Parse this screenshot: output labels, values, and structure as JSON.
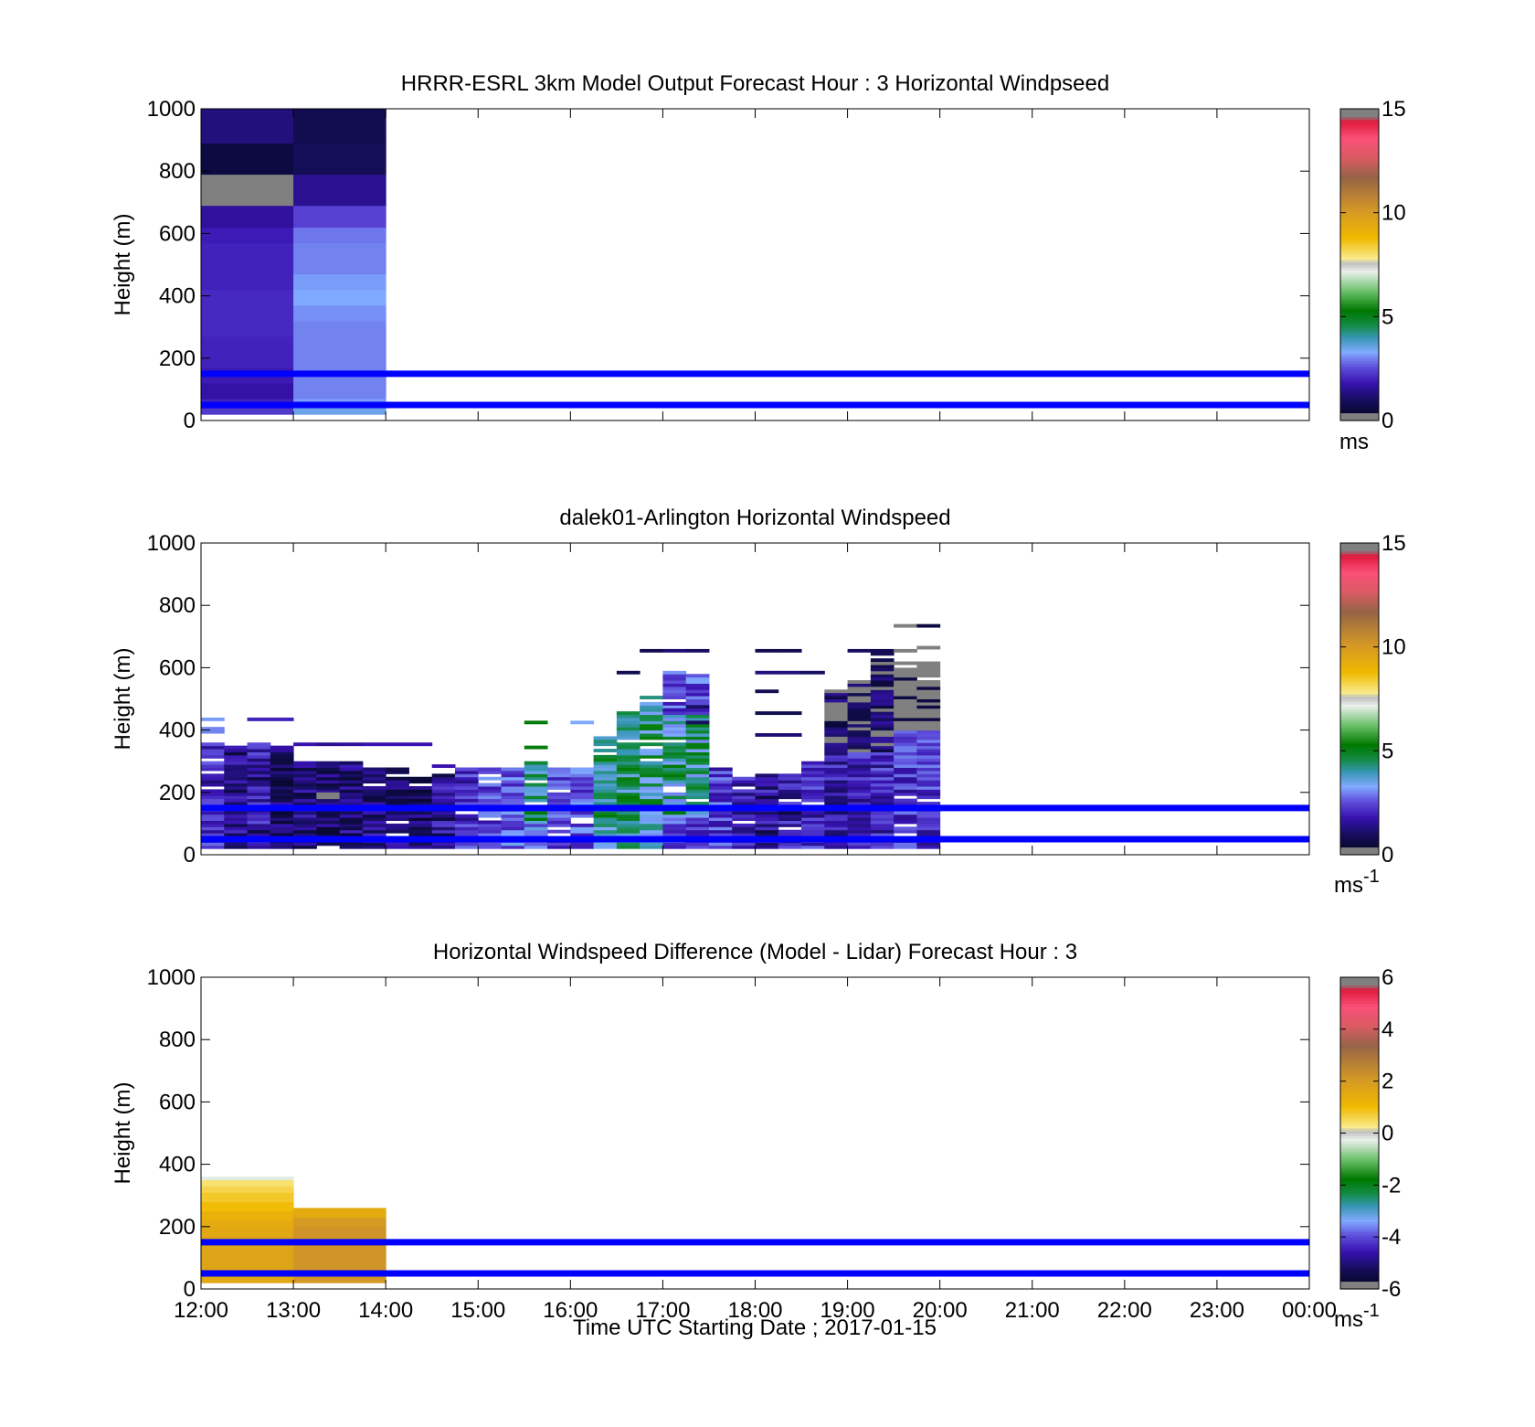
{
  "figure": {
    "xlabel": "Time UTC  Starting Date ; 2017-01-15",
    "x_tick_labels": [
      "12:00",
      "13:00",
      "14:00",
      "15:00",
      "16:00",
      "17:00",
      "18:00",
      "19:00",
      "20:00",
      "21:00",
      "22:00",
      "23:00",
      "00:00"
    ]
  },
  "chart_data": [
    {
      "type": "heatmap",
      "title": "HRRR-ESRL 3km Model Output   Forecast Hour : 3 Horizontal Windpseed",
      "ylabel": "Height (m)",
      "ylim": [
        0,
        1000
      ],
      "y_ticks": [
        0,
        200,
        400,
        600,
        800,
        1000
      ],
      "x_range_hours": [
        12,
        24
      ],
      "colorbar": {
        "min": 0,
        "max": 15,
        "ticks": [
          0,
          5,
          10,
          15
        ],
        "unit": "ms",
        "unit_exp": ""
      },
      "reference_heights_m": [
        150,
        50
      ],
      "reference_line_color": "#0000ff",
      "columns": [
        {
          "t0": 12,
          "t1": 13,
          "cells": [
            [
              20,
              40,
              2.3
            ],
            [
              40,
              70,
              2.0
            ],
            [
              70,
              120,
              1.7
            ],
            [
              120,
              170,
              1.9
            ],
            [
              170,
              220,
              2.0
            ],
            [
              220,
              270,
              2.0
            ],
            [
              270,
              320,
              2.1
            ],
            [
              320,
              370,
              2.1
            ],
            [
              370,
              420,
              2.1
            ],
            [
              420,
              470,
              2.0
            ],
            [
              470,
              520,
              2.0
            ],
            [
              520,
              570,
              2.0
            ],
            [
              570,
              620,
              1.9
            ],
            [
              620,
              690,
              1.6
            ],
            [
              690,
              790,
              14.9
            ],
            [
              790,
              890,
              0.6
            ],
            [
              890,
              1000,
              1.3
            ]
          ]
        },
        {
          "t0": 13,
          "t1": 14,
          "cells": [
            [
              20,
              40,
              3.5
            ],
            [
              40,
              70,
              3.2
            ],
            [
              70,
              120,
              3.0
            ],
            [
              120,
              170,
              3.0
            ],
            [
              170,
              220,
              3.0
            ],
            [
              220,
              270,
              3.0
            ],
            [
              270,
              320,
              3.0
            ],
            [
              320,
              370,
              3.1
            ],
            [
              370,
              420,
              3.3
            ],
            [
              420,
              470,
              3.2
            ],
            [
              470,
              520,
              3.0
            ],
            [
              520,
              570,
              3.0
            ],
            [
              570,
              620,
              2.9
            ],
            [
              620,
              690,
              2.4
            ],
            [
              690,
              790,
              1.5
            ],
            [
              790,
              890,
              0.9
            ],
            [
              890,
              1000,
              0.8
            ]
          ]
        }
      ]
    },
    {
      "type": "heatmap",
      "title": "dalek01-Arlington  Horizontal Windspeed",
      "ylabel": "Height (m)",
      "ylim": [
        0,
        1000
      ],
      "y_ticks": [
        0,
        200,
        400,
        600,
        800,
        1000
      ],
      "x_range_hours": [
        12,
        24
      ],
      "colorbar": {
        "min": 0,
        "max": 15,
        "ticks": [
          0,
          5,
          10,
          15
        ],
        "unit": "ms",
        "unit_exp": "-1"
      },
      "reference_heights_m": [
        150,
        50
      ],
      "reference_line_color": "#0000ff",
      "columns": [
        {
          "t0": 12.0,
          "t1": 12.25,
          "top": 360,
          "base": 2.0,
          "type": 1,
          "extras": [
            [
              390,
              410,
              3.0
            ],
            [
              430,
              440,
              3.2
            ]
          ]
        },
        {
          "t0": 12.25,
          "t1": 12.5,
          "top": 350,
          "base": 1.6,
          "type": 1,
          "extras": []
        },
        {
          "t0": 12.5,
          "t1": 12.75,
          "top": 360,
          "base": 1.8,
          "type": 1,
          "extras": [
            [
              430,
              440,
              2.0
            ]
          ]
        },
        {
          "t0": 12.75,
          "t1": 13.0,
          "top": 350,
          "base": 1.0,
          "type": 1,
          "extras": [
            [
              430,
              440,
              2.0
            ]
          ]
        },
        {
          "t0": 13.0,
          "t1": 13.25,
          "top": 300,
          "base": 1.3,
          "type": 1,
          "extras": [
            [
              350,
              360,
              1.8
            ]
          ]
        },
        {
          "t0": 13.25,
          "t1": 13.5,
          "top": 300,
          "base": 1.0,
          "type": 1,
          "extras": [
            [
              350,
              360,
              1.5
            ],
            [
              180,
              200,
              14.8
            ]
          ]
        },
        {
          "t0": 13.5,
          "t1": 13.75,
          "top": 300,
          "base": 1.2,
          "type": 1,
          "extras": [
            [
              350,
              360,
              1.6
            ]
          ]
        },
        {
          "t0": 13.75,
          "t1": 14.0,
          "top": 280,
          "base": 1.5,
          "type": 1,
          "extras": [
            [
              350,
              360,
              1.8
            ]
          ]
        },
        {
          "t0": 14.0,
          "t1": 14.25,
          "top": 280,
          "base": 1.2,
          "type": 1,
          "extras": [
            [
              350,
              360,
              1.8
            ]
          ]
        },
        {
          "t0": 14.25,
          "t1": 14.5,
          "top": 250,
          "base": 1.1,
          "type": 1,
          "extras": [
            [
              350,
              360,
              1.8
            ]
          ]
        },
        {
          "t0": 14.5,
          "t1": 14.75,
          "top": 260,
          "base": 1.6,
          "type": 1,
          "extras": [
            [
              280,
              290,
              1.8
            ]
          ]
        },
        {
          "t0": 14.75,
          "t1": 15.0,
          "top": 280,
          "base": 2.1,
          "type": 2,
          "extras": []
        },
        {
          "t0": 15.0,
          "t1": 15.25,
          "top": 280,
          "base": 2.5,
          "type": 2,
          "extras": []
        },
        {
          "t0": 15.25,
          "t1": 15.5,
          "top": 280,
          "base": 2.7,
          "type": 2,
          "extras": []
        },
        {
          "t0": 15.5,
          "t1": 15.75,
          "top": 300,
          "base": 3.0,
          "type": 3,
          "extras": [
            [
              340,
              350,
              5.2
            ],
            [
              420,
              430,
              5.2
            ]
          ]
        },
        {
          "t0": 15.75,
          "t1": 16.0,
          "top": 280,
          "base": 2.4,
          "type": 2,
          "extras": []
        },
        {
          "t0": 16.0,
          "t1": 16.25,
          "top": 280,
          "base": 2.7,
          "type": 2,
          "extras": [
            [
              420,
              430,
              3.3
            ]
          ]
        },
        {
          "t0": 16.25,
          "t1": 16.5,
          "top": 380,
          "base": 3.8,
          "type": 3,
          "extras": []
        },
        {
          "t0": 16.5,
          "t1": 16.75,
          "top": 470,
          "base": 4.2,
          "type": 3,
          "extras": [
            [
              580,
              590,
              0.8
            ]
          ]
        },
        {
          "t0": 16.75,
          "t1": 17.0,
          "top": 510,
          "base": 3.6,
          "type": 4,
          "extras": [
            [
              650,
              660,
              0.8
            ]
          ]
        },
        {
          "t0": 17.0,
          "t1": 17.25,
          "top": 590,
          "base": 2.6,
          "type": 4,
          "extras": [
            [
              650,
              660,
              1.2
            ],
            [
              460,
              470,
              1.8
            ]
          ]
        },
        {
          "t0": 17.25,
          "t1": 17.5,
          "top": 580,
          "base": 2.5,
          "type": 4,
          "extras": [
            [
              650,
              660,
              1.0
            ],
            [
              470,
              480,
              1.0
            ],
            [
              420,
              430,
              1.0
            ]
          ]
        },
        {
          "t0": 17.5,
          "t1": 17.75,
          "top": 280,
          "base": 2.4,
          "type": 2,
          "extras": []
        },
        {
          "t0": 17.75,
          "t1": 18.0,
          "top": 250,
          "base": 1.8,
          "type": 1,
          "extras": []
        },
        {
          "t0": 18.0,
          "t1": 18.25,
          "top": 260,
          "base": 1.7,
          "type": 1,
          "extras": [
            [
              650,
              660,
              0.8
            ],
            [
              580,
              590,
              1.3
            ],
            [
              520,
              530,
              0.8
            ],
            [
              450,
              460,
              0.8
            ],
            [
              380,
              390,
              1.2
            ]
          ]
        },
        {
          "t0": 18.25,
          "t1": 18.5,
          "top": 260,
          "base": 1.8,
          "type": 1,
          "extras": [
            [
              650,
              660,
              0.8
            ],
            [
              580,
              590,
              1.3
            ],
            [
              450,
              460,
              0.8
            ],
            [
              380,
              390,
              1.2
            ]
          ]
        },
        {
          "t0": 18.5,
          "t1": 18.75,
          "top": 300,
          "base": 2.0,
          "type": 2,
          "extras": [
            [
              580,
              590,
              1.0
            ]
          ]
        },
        {
          "t0": 18.75,
          "t1": 19.0,
          "top": 530,
          "base": 1.8,
          "type": 5,
          "extras": []
        },
        {
          "t0": 19.0,
          "t1": 19.25,
          "top": 560,
          "base": 1.9,
          "type": 5,
          "extras": [
            [
              650,
              660,
              1.0
            ]
          ]
        },
        {
          "t0": 19.25,
          "t1": 19.5,
          "top": 660,
          "base": 2.0,
          "type": 5,
          "extras": []
        },
        {
          "t0": 19.5,
          "t1": 19.75,
          "top": 620,
          "base": 2.2,
          "type": 6,
          "extras": [
            [
              730,
              740,
              14.8
            ],
            [
              650,
              660,
              14.8
            ]
          ]
        },
        {
          "t0": 19.75,
          "t1": 20.0,
          "top": 620,
          "base": 2.2,
          "type": 6,
          "extras": [
            [
              730,
              740,
              0.6
            ],
            [
              660,
              670,
              14.8
            ]
          ]
        }
      ]
    },
    {
      "type": "heatmap",
      "title": "Horizontal Windspeed Difference (Model - Lidar) Forecast Hour : 3",
      "ylabel": "Height (m)",
      "ylim": [
        0,
        1000
      ],
      "y_ticks": [
        0,
        200,
        400,
        600,
        800,
        1000
      ],
      "x_range_hours": [
        12,
        24
      ],
      "colorbar": {
        "min": -6,
        "max": 6,
        "ticks": [
          -6,
          -4,
          -2,
          0,
          2,
          4,
          6
        ],
        "unit": "ms",
        "unit_exp": "-1"
      },
      "reference_heights_m": [
        150,
        50
      ],
      "reference_line_color": "#0000ff",
      "columns": [
        {
          "t0": 12,
          "t1": 13,
          "cells": [
            [
              20,
              40,
              1.6
            ],
            [
              40,
              70,
              1.7
            ],
            [
              70,
              120,
              1.7
            ],
            [
              120,
              170,
              1.7
            ],
            [
              170,
              200,
              1.6
            ],
            [
              200,
              220,
              1.5
            ],
            [
              220,
              250,
              1.3
            ],
            [
              250,
              280,
              1.0
            ],
            [
              280,
              310,
              0.8
            ],
            [
              310,
              330,
              0.6
            ],
            [
              330,
              350,
              0.4
            ],
            [
              350,
              360,
              -0.3
            ]
          ]
        },
        {
          "t0": 13,
          "t1": 14,
          "cells": [
            [
              20,
              40,
              2.1
            ],
            [
              40,
              70,
              2.2
            ],
            [
              70,
              120,
              2.2
            ],
            [
              120,
              170,
              2.2
            ],
            [
              170,
              200,
              2.2
            ],
            [
              200,
              230,
              2.0
            ],
            [
              230,
              260,
              1.5
            ]
          ]
        }
      ]
    }
  ]
}
